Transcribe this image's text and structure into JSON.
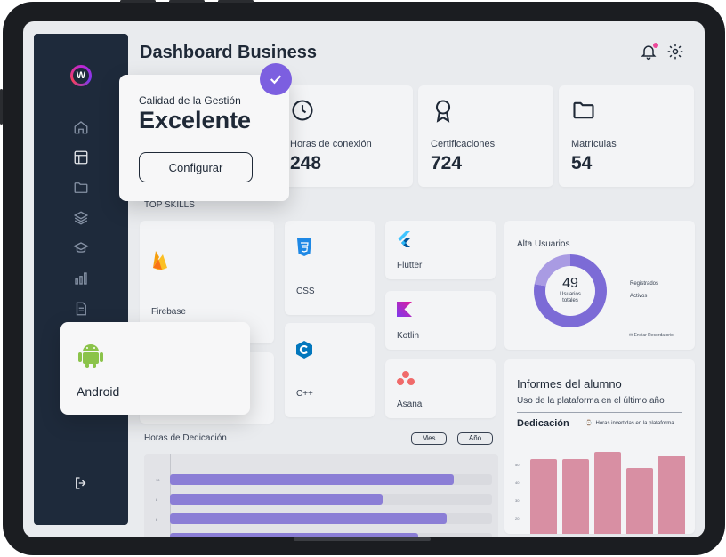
{
  "header": {
    "title": "Dashboard Business"
  },
  "sidebar": {
    "logo_letter": "W",
    "items": [
      {
        "icon": "home-icon"
      },
      {
        "icon": "layout-icon"
      },
      {
        "icon": "folder-icon"
      },
      {
        "icon": "layers-icon"
      },
      {
        "icon": "graduation-cap-icon"
      },
      {
        "icon": "bar-chart-icon"
      },
      {
        "icon": "document-icon"
      }
    ],
    "logout_icon": "logout-icon"
  },
  "quality_popup": {
    "label": "Calidad de la Gestión",
    "value": "Excelente",
    "button": "Configurar"
  },
  "stats": [
    {
      "icon": "clock-icon",
      "label": "Horas de conexión",
      "value": "248"
    },
    {
      "icon": "award-icon",
      "label": "Certificaciones",
      "value": "724"
    },
    {
      "icon": "folder-icon",
      "label": "Matrículas",
      "value": "54"
    }
  ],
  "skills": {
    "title": "TOP SKILLS",
    "items": [
      "Firebase",
      "CSS",
      "Flutter",
      "Kotlin",
      "C++",
      "Asana"
    ]
  },
  "android_popup": {
    "label": "Android"
  },
  "alta_usuarios": {
    "title": "Alta Usuarios",
    "total": "49",
    "total_label_1": "Usuarios",
    "total_label_2": "totales",
    "legend": [
      "Registrados",
      "Activos"
    ],
    "reminder": "Enviar Recordatorio",
    "colors": {
      "registrados": "#7c6bd6",
      "activos": "#a99be3"
    }
  },
  "horas_dedicacion": {
    "title": "Horas de Dedicación",
    "buttons": [
      "Mes",
      "Año"
    ],
    "bars": [
      0.88,
      0.66,
      0.86,
      0.77
    ],
    "ticks": [
      "10",
      "8",
      "6",
      "4"
    ]
  },
  "informes": {
    "title": "Informes del alumno",
    "subtitle": "Uso de la plataforma en el último año",
    "dedicacion_label": "Dedicación",
    "legend": "Horas invertidas en la plataforma",
    "columns": [
      0.76,
      0.76,
      0.84,
      0.67,
      0.8
    ],
    "ticks": [
      "50",
      "40",
      "30",
      "20"
    ]
  },
  "colors": {
    "accent": "#7c5fe0",
    "sidebar": "#1e2a3b",
    "bars": "#8b7ed6",
    "columns": "#d88fa3"
  }
}
